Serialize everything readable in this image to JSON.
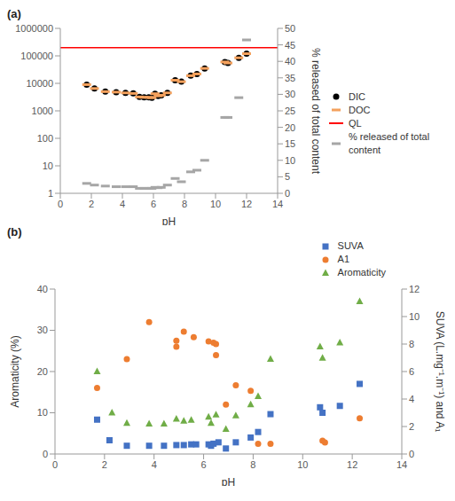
{
  "chart_data": [
    {
      "type": "scatter",
      "title": "(a)",
      "x_label": "pH",
      "y2_label": "% released of total content",
      "log": "y",
      "legend": "right",
      "xlim": [
        0,
        14
      ],
      "xticks": [
        0,
        2,
        4,
        6,
        8,
        10,
        12,
        14
      ],
      "ylim": [
        1,
        1000000
      ],
      "yticks": [
        1,
        10,
        100,
        1000,
        10000,
        100000,
        1000000
      ],
      "y2lim": [
        0,
        50
      ],
      "y2ticks": [
        0,
        5,
        10,
        15,
        20,
        25,
        30,
        35,
        40,
        45,
        50
      ],
      "x": [
        1.7,
        2.2,
        2.9,
        3.6,
        4.2,
        4.7,
        5.1,
        5.4,
        5.7,
        5.9,
        6.1,
        6.3,
        6.5,
        6.9,
        7.4,
        7.8,
        8.4,
        8.8,
        9.3,
        10.6,
        10.8,
        11.5,
        12.0
      ],
      "series": [
        {
          "name": "DIC",
          "color": "#000000",
          "marker": "circle",
          "values": [
            9000,
            6500,
            5000,
            4800,
            4500,
            4300,
            3200,
            3100,
            3100,
            3000,
            4200,
            3500,
            3700,
            4500,
            13000,
            11500,
            19000,
            22000,
            35000,
            60000,
            55000,
            85000,
            120000
          ]
        },
        {
          "name": "DOC",
          "color": "#f4a15d",
          "marker": "dash",
          "values": [
            9000,
            6500,
            5000,
            4800,
            4500,
            4300,
            3200,
            3100,
            3100,
            3000,
            4200,
            3500,
            3700,
            4500,
            13000,
            11500,
            19000,
            22000,
            35000,
            60000,
            55000,
            85000,
            120000
          ]
        },
        {
          "name": "QL",
          "color": "#ff0000",
          "type": "hline",
          "y": 200000
        },
        {
          "name": "% released of total content",
          "color": "#a6a6a6",
          "marker": "dash",
          "axis": "y2",
          "values": [
            3,
            2.5,
            2.2,
            2,
            2,
            2,
            1.5,
            1.5,
            1.5,
            1.5,
            1.8,
            1.7,
            1.8,
            2.5,
            4.5,
            3.5,
            6.5,
            7,
            10,
            23,
            23,
            29,
            46.5
          ]
        }
      ]
    },
    {
      "type": "scatter",
      "title": "(b)",
      "x_label": "pH",
      "y_label": "Aromaticity (%)",
      "y2_label": "SUVA (L.mg⁻¹.m⁻¹) and A₁",
      "legend": "top",
      "xlim": [
        0,
        14
      ],
      "xticks": [
        0,
        2,
        4,
        6,
        8,
        10,
        12,
        14
      ],
      "ylim": [
        0,
        40
      ],
      "yticks": [
        0,
        10,
        20,
        30,
        40
      ],
      "y2lim": [
        0,
        12
      ],
      "y2ticks": [
        0,
        2,
        4,
        6,
        8,
        10,
        12
      ],
      "series": [
        {
          "name": "SUVA",
          "color": "#4472c4",
          "marker": "square",
          "axis": "y2",
          "x": [
            1.7,
            2.2,
            2.9,
            3.8,
            4.4,
            4.9,
            5.2,
            5.5,
            5.7,
            6.2,
            6.3,
            6.4,
            6.6,
            6.9,
            7.3,
            7.9,
            8.2,
            8.7,
            10.7,
            10.8,
            11.5,
            12.3
          ],
          "values": [
            2.5,
            1.0,
            0.6,
            0.6,
            0.6,
            0.65,
            0.65,
            0.7,
            0.7,
            0.7,
            0.6,
            0.75,
            0.85,
            0.4,
            0.85,
            1.2,
            1.6,
            2.9,
            3.4,
            3.0,
            3.5,
            5.1
          ]
        },
        {
          "name": "A1",
          "color": "#ed7d31",
          "marker": "circle",
          "axis": "y2",
          "x": [
            1.7,
            2.9,
            3.8,
            4.9,
            4.9,
            5.2,
            5.6,
            6.2,
            6.4,
            6.5,
            6.5,
            6.9,
            7.3,
            7.9,
            8.2,
            8.7,
            10.8,
            10.9,
            12.3
          ],
          "values": [
            4.8,
            6.9,
            9.6,
            7.8,
            8.25,
            8.9,
            8.5,
            8.2,
            8.1,
            8.0,
            7.2,
            3.6,
            5.0,
            4.6,
            0.75,
            0.75,
            0.96,
            0.84,
            2.6
          ]
        },
        {
          "name": "Aromaticity",
          "color": "#70ad47",
          "marker": "triangle",
          "x": [
            1.7,
            2.3,
            2.9,
            3.8,
            4.4,
            4.9,
            5.2,
            5.5,
            6.2,
            6.3,
            6.5,
            6.9,
            7.3,
            7.9,
            8.2,
            8.7,
            10.7,
            10.8,
            11.5,
            12.3
          ],
          "values": [
            20,
            10,
            7.5,
            7.3,
            7.3,
            8.5,
            8,
            8.2,
            9,
            7.5,
            9.5,
            6,
            9.3,
            12,
            14,
            23,
            26,
            23.3,
            27,
            37
          ]
        }
      ]
    }
  ]
}
